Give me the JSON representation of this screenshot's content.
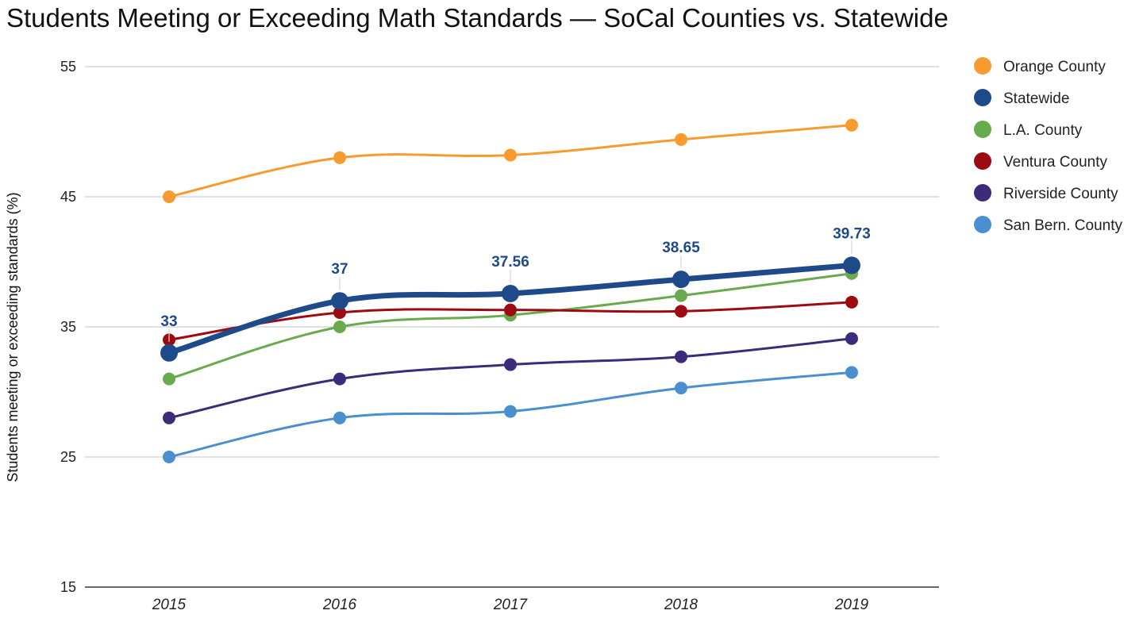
{
  "chart_data": {
    "type": "line",
    "title": "Students Meeting or Exceeding Math Standards — SoCal Counties vs. Statewide",
    "xlabel": "",
    "ylabel": "Students meeting or exceeding standards (%)",
    "ylim": [
      15,
      55
    ],
    "yticks": [
      15,
      25,
      35,
      45,
      55
    ],
    "categories": [
      "2015",
      "2016",
      "2017",
      "2018",
      "2019"
    ],
    "legend_position": "right",
    "series": [
      {
        "name": "Orange County",
        "color": "#f79b2e",
        "emphasis": false,
        "values": [
          45,
          48,
          48.2,
          49.4,
          50.5
        ]
      },
      {
        "name": "Statewide",
        "color": "#1f4a8a",
        "emphasis": true,
        "values": [
          33,
          37,
          37.56,
          38.65,
          39.73
        ],
        "data_labels": [
          "33",
          "37",
          "37.56",
          "38.65",
          "39.73"
        ]
      },
      {
        "name": "L.A. County",
        "color": "#6aaa4f",
        "emphasis": false,
        "values": [
          31,
          35,
          35.9,
          37.4,
          39.1
        ]
      },
      {
        "name": "Ventura County",
        "color": "#9e0a12",
        "emphasis": false,
        "values": [
          34,
          36.1,
          36.3,
          36.2,
          36.9
        ]
      },
      {
        "name": "Riverside County",
        "color": "#3b2b7a",
        "emphasis": false,
        "values": [
          28,
          31,
          32.1,
          32.7,
          34.1
        ]
      },
      {
        "name": "San Bern. County",
        "color": "#4a8fcf",
        "emphasis": false,
        "values": [
          25,
          28,
          28.5,
          30.3,
          31.5
        ]
      }
    ]
  }
}
